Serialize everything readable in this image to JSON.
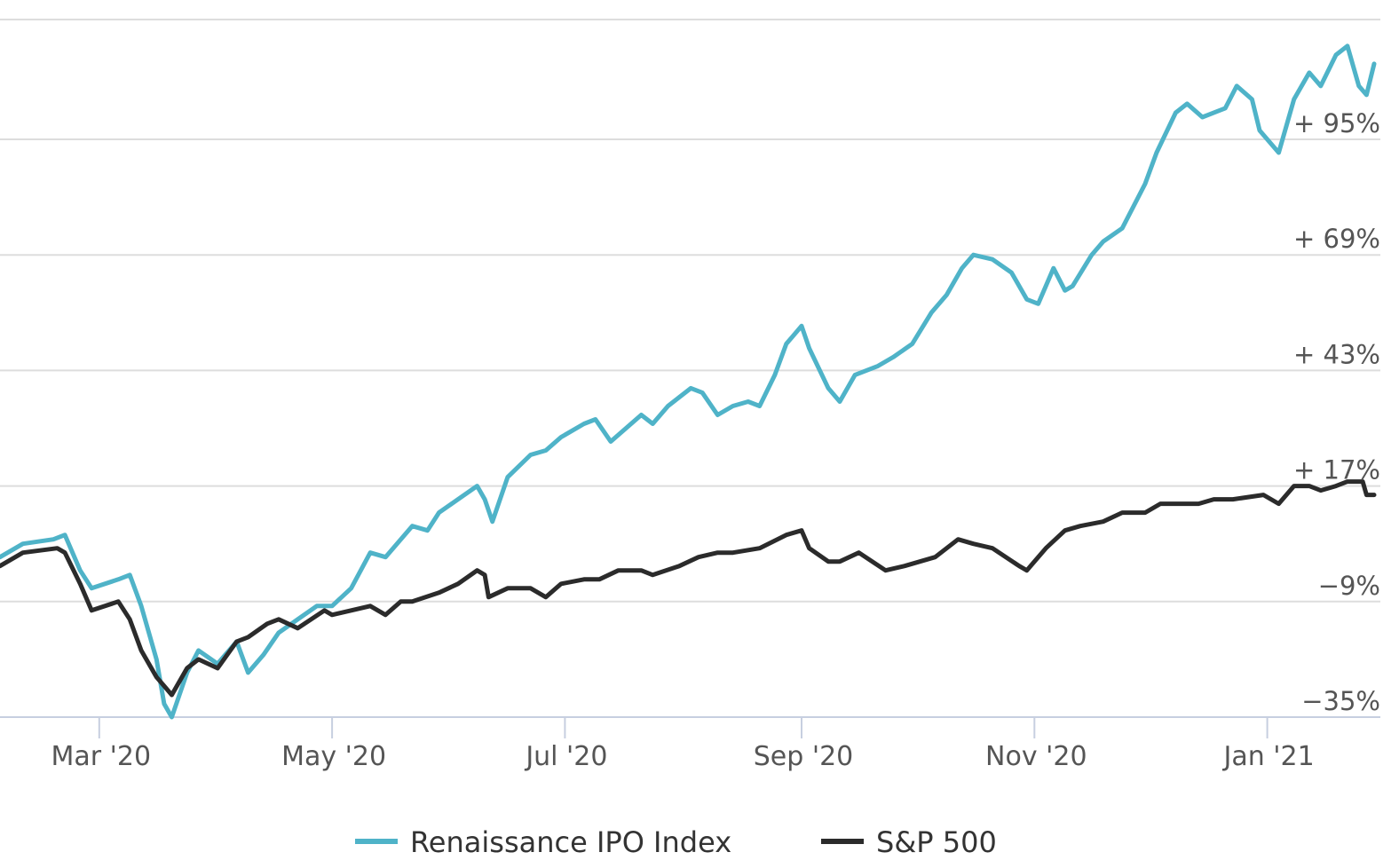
{
  "chart_data": {
    "type": "line",
    "title": "",
    "xlabel": "",
    "ylabel": "",
    "y_ticks": [
      {
        "value": 95,
        "label": "+ 95%"
      },
      {
        "value": 69,
        "label": "+ 69%"
      },
      {
        "value": 43,
        "label": "+ 43%"
      },
      {
        "value": 17,
        "label": "+ 17%"
      },
      {
        "value": -9,
        "label": "−9%"
      },
      {
        "value": -35,
        "label": "−35%"
      }
    ],
    "x_ticks": [
      {
        "date": "2020-03-01",
        "label": "Mar '20"
      },
      {
        "date": "2020-05-01",
        "label": "May '20"
      },
      {
        "date": "2020-07-01",
        "label": "Jul '20"
      },
      {
        "date": "2020-09-01",
        "label": "Sep '20"
      },
      {
        "date": "2020-11-01",
        "label": "Nov '20"
      },
      {
        "date": "2021-01-01",
        "label": "Jan '21"
      }
    ],
    "xlim": [
      "2020-02-04",
      "2021-01-29"
    ],
    "ylim": [
      -35,
      122
    ],
    "grid": true,
    "legend_position": "bottom-center",
    "series": [
      {
        "name": "Renaissance IPO Index",
        "color": "#4fb3c8",
        "points": [
          [
            "2020-02-04",
            1
          ],
          [
            "2020-02-10",
            4
          ],
          [
            "2020-02-18",
            5
          ],
          [
            "2020-02-21",
            6
          ],
          [
            "2020-02-25",
            -2
          ],
          [
            "2020-02-28",
            -6
          ],
          [
            "2020-03-06",
            -4
          ],
          [
            "2020-03-09",
            -3
          ],
          [
            "2020-03-12",
            -10
          ],
          [
            "2020-03-16",
            -22
          ],
          [
            "2020-03-18",
            -32
          ],
          [
            "2020-03-20",
            -35
          ],
          [
            "2020-03-24",
            -25
          ],
          [
            "2020-03-27",
            -20
          ],
          [
            "2020-04-01",
            -23
          ],
          [
            "2020-04-06",
            -18
          ],
          [
            "2020-04-09",
            -25
          ],
          [
            "2020-04-13",
            -21
          ],
          [
            "2020-04-17",
            -16
          ],
          [
            "2020-04-22",
            -13
          ],
          [
            "2020-04-27",
            -10
          ],
          [
            "2020-05-01",
            -10
          ],
          [
            "2020-05-06",
            -6
          ],
          [
            "2020-05-11",
            2
          ],
          [
            "2020-05-15",
            1
          ],
          [
            "2020-05-19",
            5
          ],
          [
            "2020-05-22",
            8
          ],
          [
            "2020-05-26",
            7
          ],
          [
            "2020-05-29",
            11
          ],
          [
            "2020-06-03",
            14
          ],
          [
            "2020-06-08",
            17
          ],
          [
            "2020-06-10",
            14
          ],
          [
            "2020-06-12",
            9
          ],
          [
            "2020-06-16",
            19
          ],
          [
            "2020-06-22",
            24
          ],
          [
            "2020-06-26",
            25
          ],
          [
            "2020-06-30",
            28
          ],
          [
            "2020-07-06",
            31
          ],
          [
            "2020-07-09",
            32
          ],
          [
            "2020-07-13",
            27
          ],
          [
            "2020-07-17",
            30
          ],
          [
            "2020-07-21",
            33
          ],
          [
            "2020-07-24",
            31
          ],
          [
            "2020-07-28",
            35
          ],
          [
            "2020-08-03",
            39
          ],
          [
            "2020-08-06",
            38
          ],
          [
            "2020-08-10",
            33
          ],
          [
            "2020-08-14",
            35
          ],
          [
            "2020-08-18",
            36
          ],
          [
            "2020-08-21",
            35
          ],
          [
            "2020-08-25",
            42
          ],
          [
            "2020-08-28",
            49
          ],
          [
            "2020-09-01",
            53
          ],
          [
            "2020-09-03",
            48
          ],
          [
            "2020-09-08",
            39
          ],
          [
            "2020-09-11",
            36
          ],
          [
            "2020-09-15",
            42
          ],
          [
            "2020-09-21",
            44
          ],
          [
            "2020-09-25",
            46
          ],
          [
            "2020-09-30",
            49
          ],
          [
            "2020-10-05",
            56
          ],
          [
            "2020-10-09",
            60
          ],
          [
            "2020-10-13",
            66
          ],
          [
            "2020-10-16",
            69
          ],
          [
            "2020-10-21",
            68
          ],
          [
            "2020-10-26",
            65
          ],
          [
            "2020-10-30",
            59
          ],
          [
            "2020-11-02",
            58
          ],
          [
            "2020-11-04",
            62
          ],
          [
            "2020-11-06",
            66
          ],
          [
            "2020-11-09",
            61
          ],
          [
            "2020-11-11",
            62
          ],
          [
            "2020-11-16",
            69
          ],
          [
            "2020-11-19",
            72
          ],
          [
            "2020-11-24",
            75
          ],
          [
            "2020-11-30",
            85
          ],
          [
            "2020-12-03",
            92
          ],
          [
            "2020-12-08",
            101
          ],
          [
            "2020-12-11",
            103
          ],
          [
            "2020-12-15",
            100
          ],
          [
            "2020-12-21",
            102
          ],
          [
            "2020-12-24",
            107
          ],
          [
            "2020-12-28",
            104
          ],
          [
            "2020-12-30",
            97
          ],
          [
            "2021-01-04",
            92
          ],
          [
            "2021-01-06",
            98
          ],
          [
            "2021-01-08",
            104
          ],
          [
            "2021-01-12",
            110
          ],
          [
            "2021-01-15",
            107
          ],
          [
            "2021-01-19",
            114
          ],
          [
            "2021-01-22",
            116
          ],
          [
            "2021-01-25",
            107
          ],
          [
            "2021-01-27",
            105
          ],
          [
            "2021-01-29",
            112
          ]
        ]
      },
      {
        "name": "S&P 500",
        "color": "#2b2b2b",
        "points": [
          [
            "2020-02-04",
            -1
          ],
          [
            "2020-02-10",
            2
          ],
          [
            "2020-02-19",
            3
          ],
          [
            "2020-02-21",
            2
          ],
          [
            "2020-02-25",
            -5
          ],
          [
            "2020-02-28",
            -11
          ],
          [
            "2020-03-06",
            -9
          ],
          [
            "2020-03-09",
            -13
          ],
          [
            "2020-03-12",
            -20
          ],
          [
            "2020-03-16",
            -26
          ],
          [
            "2020-03-18",
            -28
          ],
          [
            "2020-03-20",
            -30
          ],
          [
            "2020-03-24",
            -24
          ],
          [
            "2020-03-27",
            -22
          ],
          [
            "2020-04-01",
            -24
          ],
          [
            "2020-04-06",
            -18
          ],
          [
            "2020-04-09",
            -17
          ],
          [
            "2020-04-14",
            -14
          ],
          [
            "2020-04-17",
            -13
          ],
          [
            "2020-04-22",
            -15
          ],
          [
            "2020-04-29",
            -11
          ],
          [
            "2020-05-01",
            -12
          ],
          [
            "2020-05-06",
            -11
          ],
          [
            "2020-05-11",
            -10
          ],
          [
            "2020-05-15",
            -12
          ],
          [
            "2020-05-19",
            -9
          ],
          [
            "2020-05-22",
            -9
          ],
          [
            "2020-05-29",
            -7
          ],
          [
            "2020-06-03",
            -5
          ],
          [
            "2020-06-08",
            -2
          ],
          [
            "2020-06-10",
            -3
          ],
          [
            "2020-06-11",
            -8
          ],
          [
            "2020-06-16",
            -6
          ],
          [
            "2020-06-22",
            -6
          ],
          [
            "2020-06-26",
            -8
          ],
          [
            "2020-06-30",
            -5
          ],
          [
            "2020-07-06",
            -4
          ],
          [
            "2020-07-10",
            -4
          ],
          [
            "2020-07-15",
            -2
          ],
          [
            "2020-07-21",
            -2
          ],
          [
            "2020-07-24",
            -3
          ],
          [
            "2020-07-31",
            -1
          ],
          [
            "2020-08-05",
            1
          ],
          [
            "2020-08-10",
            2
          ],
          [
            "2020-08-14",
            2
          ],
          [
            "2020-08-21",
            3
          ],
          [
            "2020-08-28",
            6
          ],
          [
            "2020-09-01",
            7
          ],
          [
            "2020-09-03",
            3
          ],
          [
            "2020-09-08",
            0
          ],
          [
            "2020-09-11",
            0
          ],
          [
            "2020-09-16",
            2
          ],
          [
            "2020-09-23",
            -2
          ],
          [
            "2020-09-28",
            -1
          ],
          [
            "2020-10-02",
            0
          ],
          [
            "2020-10-06",
            1
          ],
          [
            "2020-10-12",
            5
          ],
          [
            "2020-10-16",
            4
          ],
          [
            "2020-10-21",
            3
          ],
          [
            "2020-10-28",
            -1
          ],
          [
            "2020-10-30",
            -2
          ],
          [
            "2020-11-04",
            3
          ],
          [
            "2020-11-09",
            7
          ],
          [
            "2020-11-13",
            8
          ],
          [
            "2020-11-19",
            9
          ],
          [
            "2020-11-24",
            11
          ],
          [
            "2020-11-30",
            11
          ],
          [
            "2020-12-04",
            13
          ],
          [
            "2020-12-09",
            13
          ],
          [
            "2020-12-14",
            13
          ],
          [
            "2020-12-18",
            14
          ],
          [
            "2020-12-23",
            14
          ],
          [
            "2020-12-31",
            15
          ],
          [
            "2021-01-04",
            13
          ],
          [
            "2021-01-08",
            17
          ],
          [
            "2021-01-12",
            17
          ],
          [
            "2021-01-15",
            16
          ],
          [
            "2021-01-19",
            17
          ],
          [
            "2021-01-22",
            18
          ],
          [
            "2021-01-26",
            18
          ],
          [
            "2021-01-27",
            15
          ],
          [
            "2021-01-29",
            15
          ]
        ]
      }
    ]
  }
}
